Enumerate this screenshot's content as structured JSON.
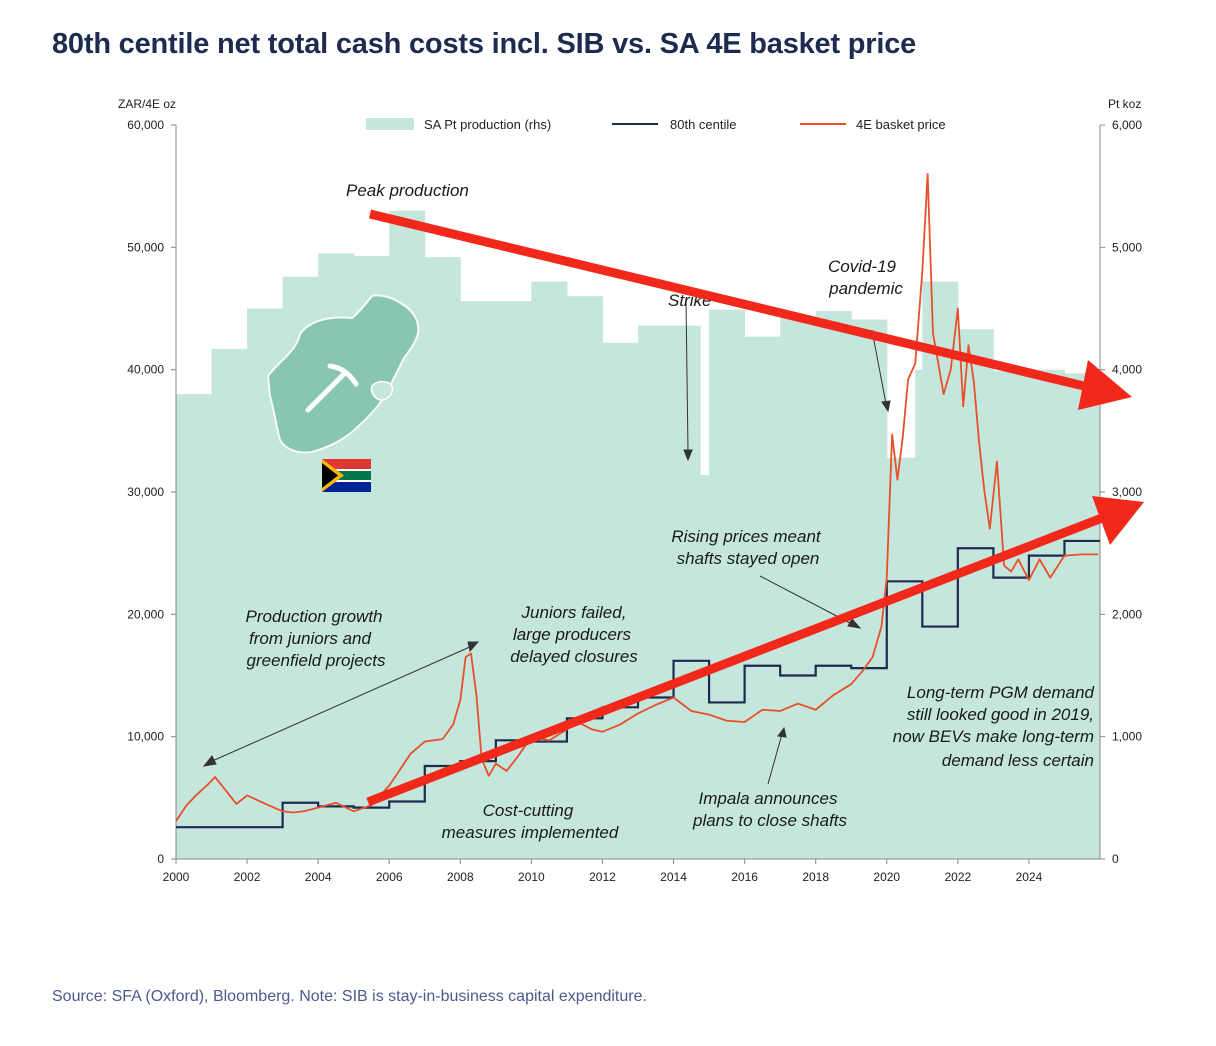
{
  "title": "80th centile net total cash costs incl. SIB vs. SA 4E basket price",
  "source": "Source: SFA (Oxford), Bloomberg. Note: SIB is stay-in-business capital expenditure.",
  "colors": {
    "production": "#c5e6dc",
    "centile": "#1d2b4f",
    "basket": "#e8502a",
    "arrow": "#f2281a",
    "title": "#1d2b4f"
  },
  "chart_data": {
    "type": "line",
    "left_axis": {
      "unit_label": "ZAR/4E oz",
      "range": [
        0,
        60000
      ],
      "ticks": [
        "0",
        "10,000",
        "20,000",
        "30,000",
        "40,000",
        "50,000",
        "60,000"
      ]
    },
    "right_axis": {
      "unit_label": "Pt koz",
      "range": [
        0,
        6000
      ],
      "ticks": [
        "0",
        "1,000",
        "2,000",
        "3,000",
        "4,000",
        "5,000",
        "6,000"
      ]
    },
    "x_axis": {
      "range": [
        2000,
        2026
      ],
      "ticks": [
        "2000",
        "2002",
        "2004",
        "2006",
        "2008",
        "2010",
        "2012",
        "2014",
        "2016",
        "2018",
        "2020",
        "2022",
        "2024"
      ]
    },
    "legend": [
      "SA Pt production (rhs)",
      "80th centile",
      "4E basket price"
    ],
    "series": [
      {
        "name": "SA Pt production (rhs)",
        "axis": "right",
        "style": "step-area",
        "x": [
          2000,
          2001,
          2002,
          2003,
          2004,
          2005,
          2006,
          2007,
          2008,
          2009,
          2010,
          2011,
          2012,
          2013,
          2014,
          2014.3,
          2014.75,
          2015,
          2016,
          2017,
          2018,
          2019,
          2020,
          2020.25,
          2020.8,
          2021,
          2022,
          2023,
          2024,
          2025
        ],
        "values": [
          3800,
          4170,
          4500,
          4760,
          4950,
          4930,
          5300,
          4920,
          4560,
          4560,
          4720,
          4600,
          4220,
          4360,
          4360,
          4360,
          3140,
          4490,
          4270,
          4430,
          4480,
          4410,
          3280,
          3280,
          4000,
          4720,
          4330,
          3990,
          4000,
          3970
        ]
      },
      {
        "name": "80th centile",
        "axis": "left",
        "style": "step",
        "x": [
          2000,
          2003,
          2004,
          2005,
          2006,
          2007,
          2008,
          2009,
          2010,
          2011,
          2012,
          2013,
          2014,
          2015,
          2016,
          2017,
          2018,
          2019,
          2020,
          2021,
          2022,
          2023,
          2024,
          2025
        ],
        "values": [
          2600,
          4600,
          4300,
          4200,
          4700,
          7600,
          8000,
          9700,
          9600,
          11500,
          12400,
          13200,
          16200,
          12800,
          15800,
          15000,
          15800,
          15600,
          22700,
          19000,
          25400,
          23000,
          24800,
          26000
        ]
      },
      {
        "name": "4E basket price",
        "axis": "left",
        "style": "line",
        "x": [
          2000,
          2000.3,
          2000.6,
          2000.9,
          2001.1,
          2001.4,
          2001.7,
          2002,
          2002.3,
          2002.6,
          2003,
          2003.3,
          2003.6,
          2004,
          2004.5,
          2005,
          2005.5,
          2006,
          2006.3,
          2006.6,
          2007,
          2007.5,
          2007.8,
          2008,
          2008.15,
          2008.3,
          2008.45,
          2008.6,
          2008.8,
          2009,
          2009.3,
          2009.6,
          2010,
          2010.5,
          2011,
          2011.3,
          2011.7,
          2012,
          2012.5,
          2013,
          2013.5,
          2014,
          2014.5,
          2015,
          2015.5,
          2016,
          2016.5,
          2017,
          2017.5,
          2018,
          2018.5,
          2019,
          2019.3,
          2019.6,
          2019.85,
          2020,
          2020.15,
          2020.3,
          2020.45,
          2020.6,
          2020.8,
          2021,
          2021.15,
          2021.3,
          2021.45,
          2021.6,
          2021.8,
          2022,
          2022.15,
          2022.3,
          2022.45,
          2022.6,
          2022.75,
          2022.9,
          2023.1,
          2023.3,
          2023.5,
          2023.7,
          2024,
          2024.3,
          2024.6,
          2025,
          2025.5,
          2025.95
        ],
        "values": [
          3100,
          4400,
          5300,
          6100,
          6700,
          5600,
          4500,
          5200,
          4800,
          4400,
          3900,
          3800,
          3900,
          4200,
          4600,
          3900,
          4400,
          6000,
          7300,
          8600,
          9600,
          9800,
          11000,
          13000,
          16500,
          16800,
          13500,
          8200,
          6800,
          7800,
          7200,
          8300,
          10000,
          9700,
          10600,
          11200,
          10600,
          10400,
          11000,
          11900,
          12600,
          13200,
          12100,
          11800,
          11300,
          11200,
          12200,
          12100,
          12700,
          12200,
          13400,
          14300,
          15300,
          16500,
          19000,
          23000,
          34700,
          31000,
          34500,
          39200,
          40500,
          48000,
          56000,
          43000,
          40500,
          38000,
          40000,
          45000,
          37000,
          42000,
          39000,
          34000,
          30000,
          27000,
          32500,
          24000,
          23500,
          24500,
          22800,
          24500,
          23000,
          24800,
          24900,
          24900
        ]
      }
    ],
    "annotations": [
      "Peak production",
      "Strike",
      "Covid-19",
      "pandemic",
      "Rising prices meant",
      "shafts stayed open",
      "Production growth",
      "from juniors and",
      "greenfield projects",
      "Juniors failed,",
      "large producers",
      "delayed closures",
      "Cost-cutting",
      "measures implemented",
      "Impala announces",
      "plans to close shafts",
      "Long-term PGM demand",
      "still looked good in 2019,",
      "now BEVs make long-term",
      "demand less certain"
    ]
  }
}
